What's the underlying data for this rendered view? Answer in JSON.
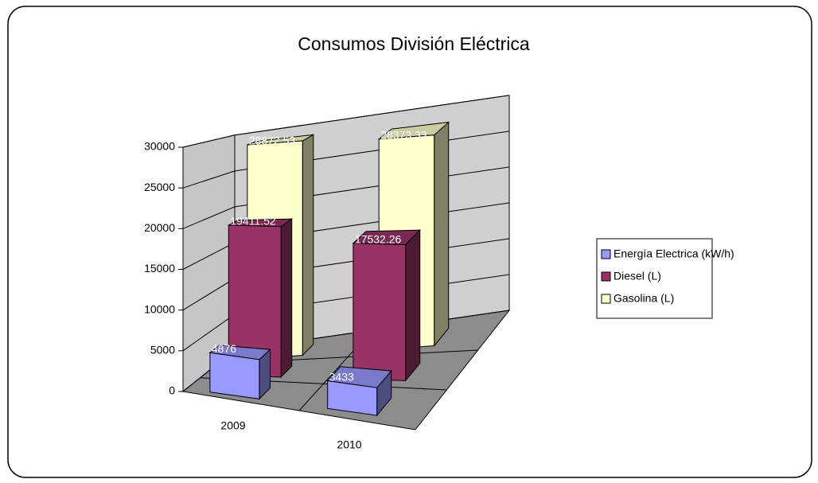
{
  "chart_data": {
    "type": "bar3d",
    "title": "Consumos División Eléctrica",
    "categories": [
      "2009",
      "2010"
    ],
    "series": [
      {
        "name": "Energía Electrica (kW/h)",
        "color": "#9999ff",
        "values": [
          4876,
          3433
        ]
      },
      {
        "name": "Diesel (L)",
        "color": "#993366",
        "values": [
          19411.52,
          17532.26
        ]
      },
      {
        "name": "Gasolina (L)",
        "color": "#ffffcc",
        "values": [
          28872.53,
          28373.33
        ]
      }
    ],
    "ylim": [
      0,
      30000
    ],
    "yticks": [
      0,
      5000,
      10000,
      15000,
      20000,
      25000,
      30000
    ],
    "grid": true,
    "legend": "right"
  }
}
